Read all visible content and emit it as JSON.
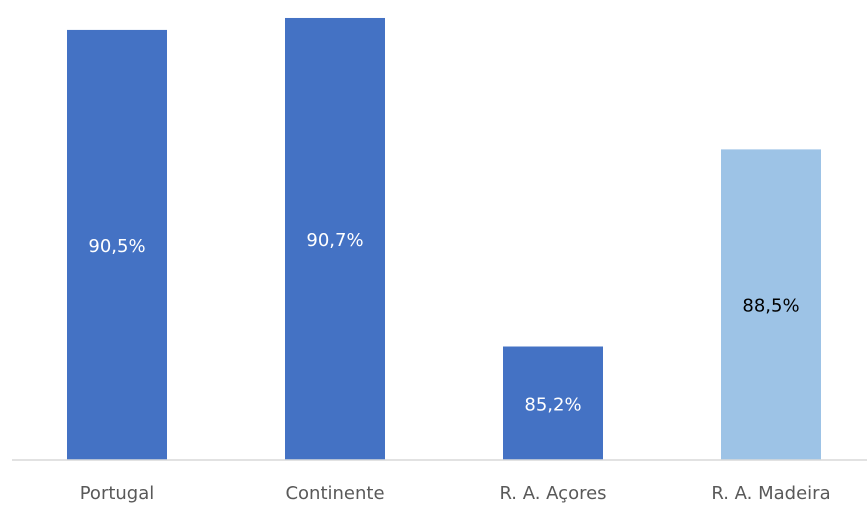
{
  "chart_data": {
    "type": "bar",
    "categories": [
      "Portugal",
      "Continente",
      "R. A. Açores",
      "R. A. Madeira"
    ],
    "values": [
      90.5,
      90.7,
      85.2,
      88.5
    ],
    "value_labels": [
      "90,5%",
      "90,7%",
      "85,2%",
      "88,5%"
    ],
    "ylim": [
      83.3,
      90.8
    ],
    "grid": false,
    "legend": "none",
    "title": "",
    "xlabel": "",
    "ylabel": "",
    "colors": {
      "bars": [
        "#4472c4",
        "#4472c4",
        "#4472c4",
        "#9dc3e6"
      ],
      "label_text": [
        "#ffffff",
        "#ffffff",
        "#ffffff",
        "#000000"
      ],
      "axis": "#d9d9d9",
      "tick_text": "#595959"
    }
  }
}
